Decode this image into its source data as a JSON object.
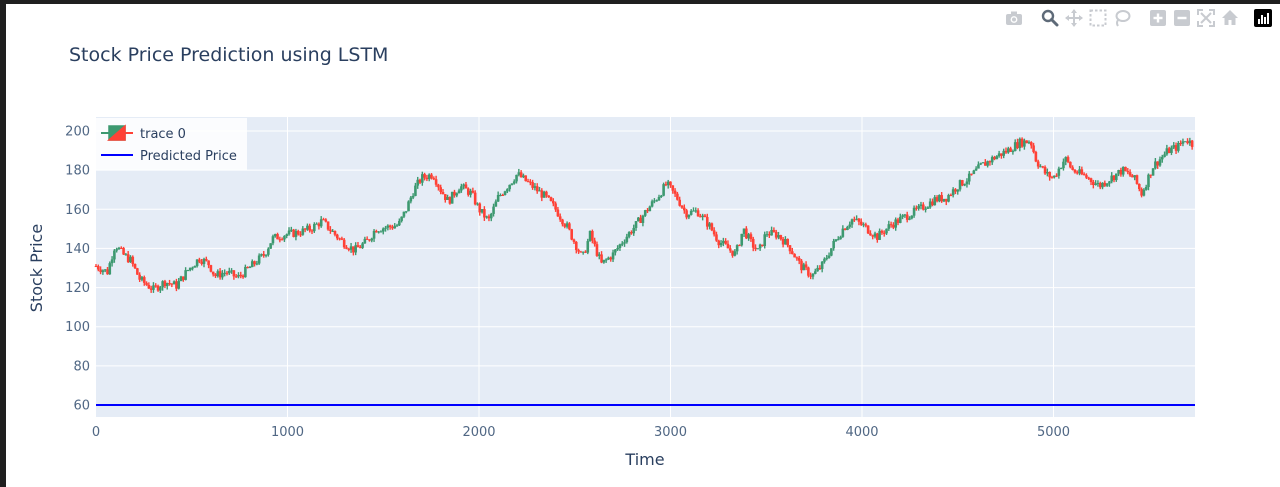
{
  "modebar": {
    "buttons": [
      {
        "name": "camera-icon"
      },
      {
        "name": "zoom-icon",
        "active": true
      },
      {
        "name": "pan-icon"
      },
      {
        "name": "box-select-icon"
      },
      {
        "name": "lasso-select-icon"
      },
      {
        "name": "zoom-in-icon"
      },
      {
        "name": "zoom-out-icon"
      },
      {
        "name": "autoscale-icon"
      },
      {
        "name": "reset-axes-icon"
      }
    ],
    "logo": "plotly-logo-icon"
  },
  "chart_data": {
    "type": "candlestick",
    "title": "Stock Price Prediction using LSTM",
    "xlabel": "Time",
    "ylabel": "Stock Price",
    "xlim": [
      0,
      5730
    ],
    "ylim": [
      53,
      206
    ],
    "xticks": [
      0,
      1000,
      2000,
      3000,
      4000,
      5000
    ],
    "yticks": [
      60,
      80,
      100,
      120,
      140,
      160,
      180,
      200
    ],
    "grid": true,
    "legend_position": "top-left",
    "colors": {
      "increasing": "#3d9970",
      "decreasing": "#ff4136",
      "predicted": "#0000ff",
      "plot_bg": "#e5ecf6",
      "title": "#2a3f5f",
      "tick_label": "#506784"
    },
    "series": [
      {
        "name": "trace 0",
        "kind": "candlestick",
        "n_points": 5730,
        "close_path": [
          [
            0,
            131
          ],
          [
            60,
            128
          ],
          [
            100,
            142
          ],
          [
            140,
            137
          ],
          [
            180,
            134
          ],
          [
            230,
            124
          ],
          [
            300,
            119
          ],
          [
            360,
            123
          ],
          [
            420,
            121
          ],
          [
            480,
            129
          ],
          [
            540,
            135
          ],
          [
            590,
            132
          ],
          [
            620,
            126
          ],
          [
            680,
            128
          ],
          [
            740,
            125
          ],
          [
            800,
            130
          ],
          [
            880,
            137
          ],
          [
            920,
            145
          ],
          [
            980,
            147
          ],
          [
            1050,
            148
          ],
          [
            1120,
            150
          ],
          [
            1180,
            154
          ],
          [
            1230,
            149
          ],
          [
            1280,
            144
          ],
          [
            1350,
            139
          ],
          [
            1420,
            144
          ],
          [
            1460,
            150
          ],
          [
            1530,
            151
          ],
          [
            1580,
            152
          ],
          [
            1620,
            160
          ],
          [
            1660,
            170
          ],
          [
            1700,
            176
          ],
          [
            1760,
            178
          ],
          [
            1800,
            170
          ],
          [
            1840,
            164
          ],
          [
            1900,
            172
          ],
          [
            1960,
            168
          ],
          [
            2000,
            160
          ],
          [
            2050,
            154
          ],
          [
            2100,
            166
          ],
          [
            2150,
            172
          ],
          [
            2200,
            178
          ],
          [
            2250,
            174
          ],
          [
            2300,
            170
          ],
          [
            2350,
            166
          ],
          [
            2400,
            160
          ],
          [
            2460,
            151
          ],
          [
            2510,
            141
          ],
          [
            2540,
            135
          ],
          [
            2580,
            147
          ],
          [
            2640,
            132
          ],
          [
            2700,
            137
          ],
          [
            2760,
            145
          ],
          [
            2820,
            152
          ],
          [
            2880,
            160
          ],
          [
            2930,
            166
          ],
          [
            2980,
            173
          ],
          [
            3040,
            165
          ],
          [
            3080,
            158
          ],
          [
            3140,
            159
          ],
          [
            3200,
            152
          ],
          [
            3250,
            144
          ],
          [
            3300,
            140
          ],
          [
            3340,
            137
          ],
          [
            3380,
            150
          ],
          [
            3420,
            143
          ],
          [
            3460,
            138
          ],
          [
            3500,
            148
          ],
          [
            3560,
            147
          ],
          [
            3620,
            141
          ],
          [
            3680,
            131
          ],
          [
            3740,
            126
          ],
          [
            3790,
            131
          ],
          [
            3850,
            142
          ],
          [
            3900,
            150
          ],
          [
            3950,
            155
          ],
          [
            4000,
            152
          ],
          [
            4080,
            146
          ],
          [
            4150,
            152
          ],
          [
            4220,
            156
          ],
          [
            4300,
            160
          ],
          [
            4380,
            165
          ],
          [
            4440,
            166
          ],
          [
            4500,
            172
          ],
          [
            4560,
            176
          ],
          [
            4620,
            182
          ],
          [
            4700,
            187
          ],
          [
            4760,
            190
          ],
          [
            4820,
            194
          ],
          [
            4880,
            195
          ],
          [
            4910,
            185
          ],
          [
            4960,
            178
          ],
          [
            5000,
            176
          ],
          [
            5060,
            186
          ],
          [
            5100,
            180
          ],
          [
            5140,
            178
          ],
          [
            5180,
            176
          ],
          [
            5240,
            172
          ],
          [
            5300,
            176
          ],
          [
            5360,
            180
          ],
          [
            5420,
            176
          ],
          [
            5460,
            168
          ],
          [
            5520,
            182
          ],
          [
            5560,
            186
          ],
          [
            5600,
            190
          ],
          [
            5650,
            192
          ],
          [
            5690,
            196
          ],
          [
            5730,
            193
          ]
        ]
      },
      {
        "name": "Predicted Price",
        "kind": "line",
        "x": [
          0,
          5730
        ],
        "y": [
          60,
          60
        ]
      }
    ]
  }
}
